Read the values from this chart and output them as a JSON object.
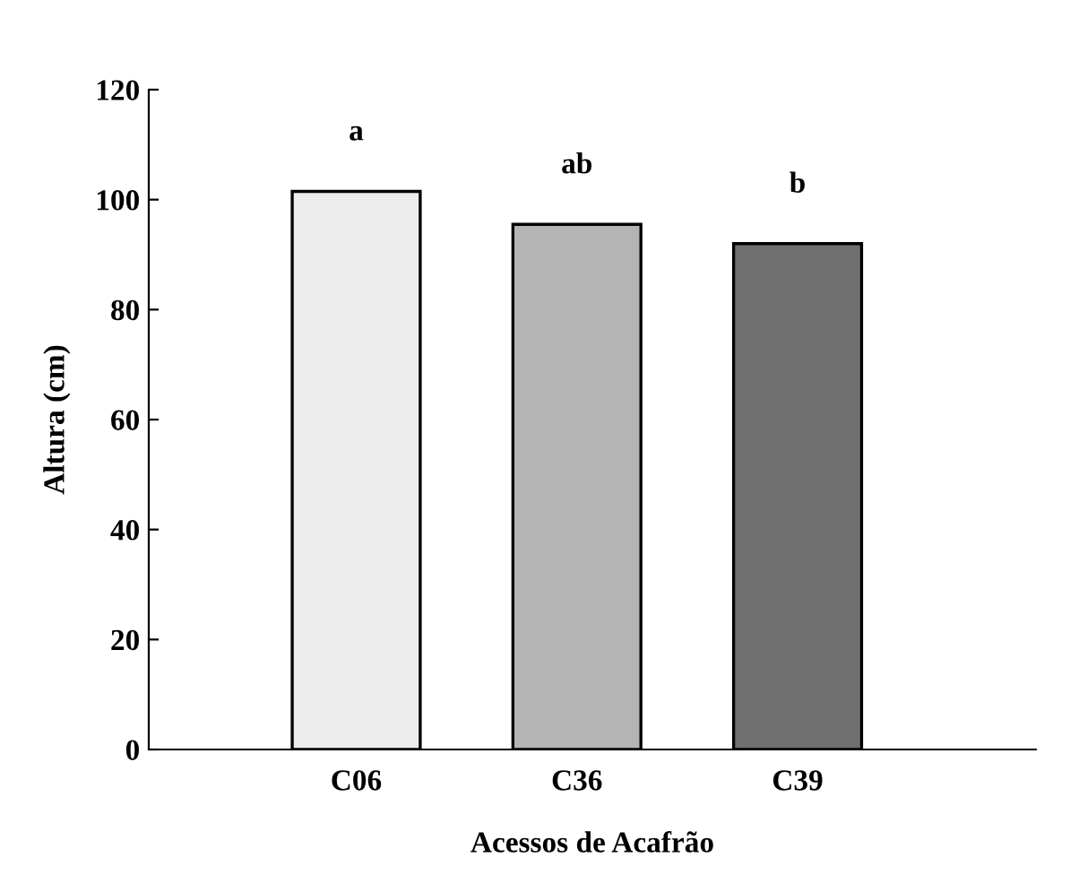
{
  "chart_data": {
    "type": "bar",
    "xlabel": "Acessos de Acafrão",
    "ylabel": "Altura (cm)",
    "categories": [
      "C06",
      "C36",
      "C39"
    ],
    "values": [
      101.5,
      95.5,
      92
    ],
    "colors": [
      "#ececec",
      "#b4b4b4",
      "#707070"
    ],
    "ylim": [
      0,
      120
    ],
    "yticks": [
      0,
      20,
      40,
      60,
      80,
      100,
      120
    ],
    "annotations": [
      {
        "text": "a",
        "x": "C06",
        "y": 101.5
      },
      {
        "text": "ab",
        "x": "C36",
        "y": 95.5
      },
      {
        "text": "b",
        "x": "C39",
        "y": 92
      }
    ],
    "grid": false,
    "legend": false
  }
}
